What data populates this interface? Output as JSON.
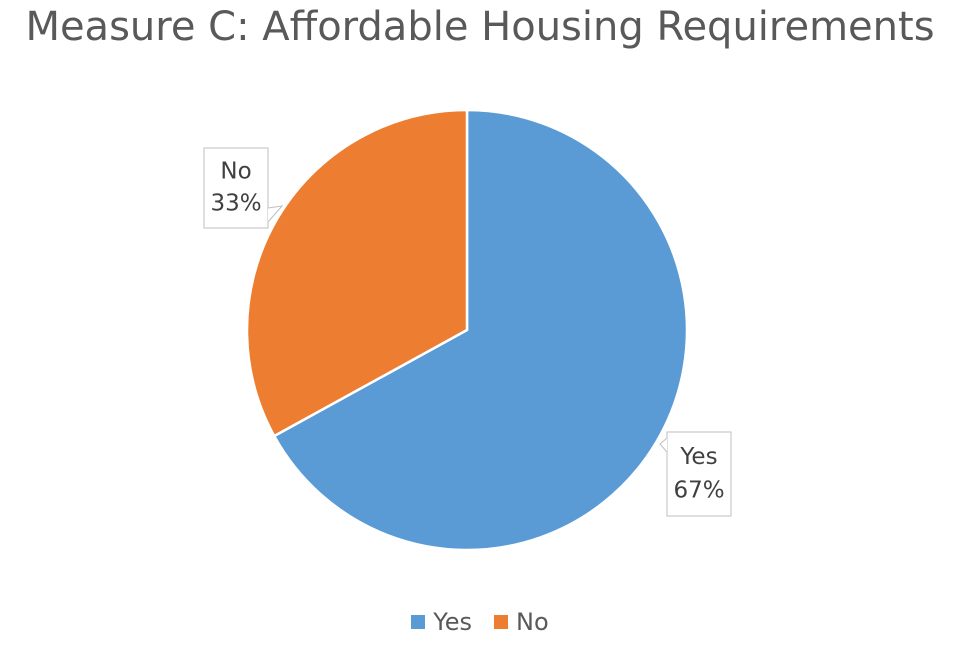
{
  "chart_data": {
    "type": "pie",
    "title": "Measure C: Affordable Housing Requirements",
    "slices": [
      {
        "label": "Yes",
        "value": 67,
        "value_label": "67%",
        "color": "#5B9BD5"
      },
      {
        "label": "No",
        "value": 33,
        "value_label": "33%",
        "color": "#ED7D31"
      }
    ],
    "legend_position": "bottom",
    "data_labels": "category-and-percentage-callouts"
  }
}
